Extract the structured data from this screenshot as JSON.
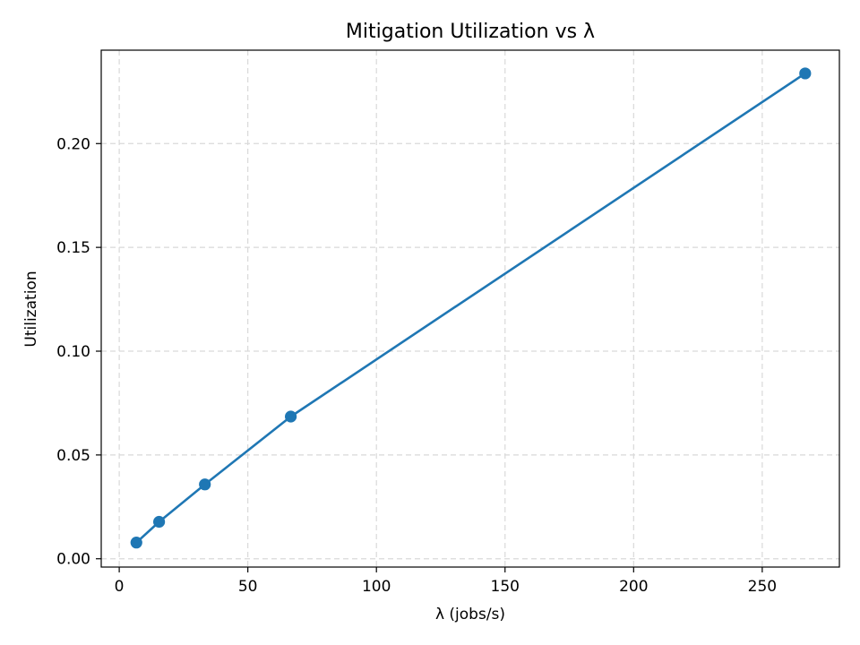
{
  "chart_data": {
    "type": "line",
    "title": "Mitigation Utilization vs λ",
    "xlabel": "λ (jobs/s)",
    "ylabel": "Utilization",
    "xlim": [
      -7,
      280
    ],
    "ylim": [
      -0.004,
      0.245
    ],
    "xticks": [
      0,
      50,
      100,
      150,
      200,
      250
    ],
    "yticks": [
      0.0,
      0.05,
      0.1,
      0.15,
      0.2
    ],
    "xtick_labels": [
      "0",
      "50",
      "100",
      "150",
      "200",
      "250"
    ],
    "ytick_labels": [
      "0.00",
      "0.05",
      "0.10",
      "0.15",
      "0.20"
    ],
    "grid": true,
    "series": [
      {
        "color": "#1f77b4",
        "marker": "circle",
        "x": [
          6.67,
          15.5,
          33.3,
          66.7,
          266.7
        ],
        "y": [
          0.0078,
          0.0178,
          0.0358,
          0.0685,
          0.2338
        ]
      }
    ]
  }
}
